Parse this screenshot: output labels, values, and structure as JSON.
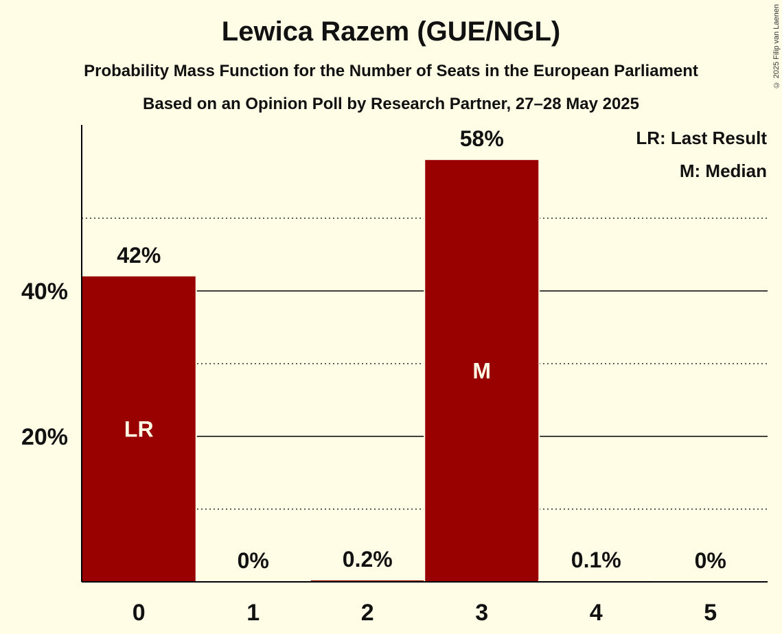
{
  "header": {
    "title": "Lewica Razem (GUE/NGL)",
    "subtitle": "Probability Mass Function for the Number of Seats in the European Parliament",
    "source_line": "Based on an Opinion Poll by Research Partner, 27–28 May 2025",
    "copyright": "© 2025 Filip van Laenen"
  },
  "legend": {
    "lr": "LR: Last Result",
    "median": "M: Median"
  },
  "chart_data": {
    "type": "bar",
    "title": "Lewica Razem (GUE/NGL)",
    "xlabel": "",
    "ylabel": "",
    "categories": [
      "0",
      "1",
      "2",
      "3",
      "4",
      "5"
    ],
    "values": [
      42,
      0,
      0.2,
      58,
      0.1,
      0
    ],
    "data_labels": [
      "42%",
      "0%",
      "0.2%",
      "58%",
      "0.1%",
      "0%"
    ],
    "bar_markers": [
      "LR",
      "",
      "",
      "M",
      "",
      ""
    ],
    "ylim": [
      0,
      63
    ],
    "y_ticks": [
      20,
      40
    ],
    "y_tick_labels": [
      "20%",
      "40%"
    ],
    "y_minor_gridlines": [
      10,
      30,
      50
    ],
    "grid": true,
    "legend_position": "top-right",
    "colors": {
      "bar": "#990000",
      "background": "#fffde6",
      "axis": "#000000",
      "marker_text": "#fffde6"
    }
  }
}
